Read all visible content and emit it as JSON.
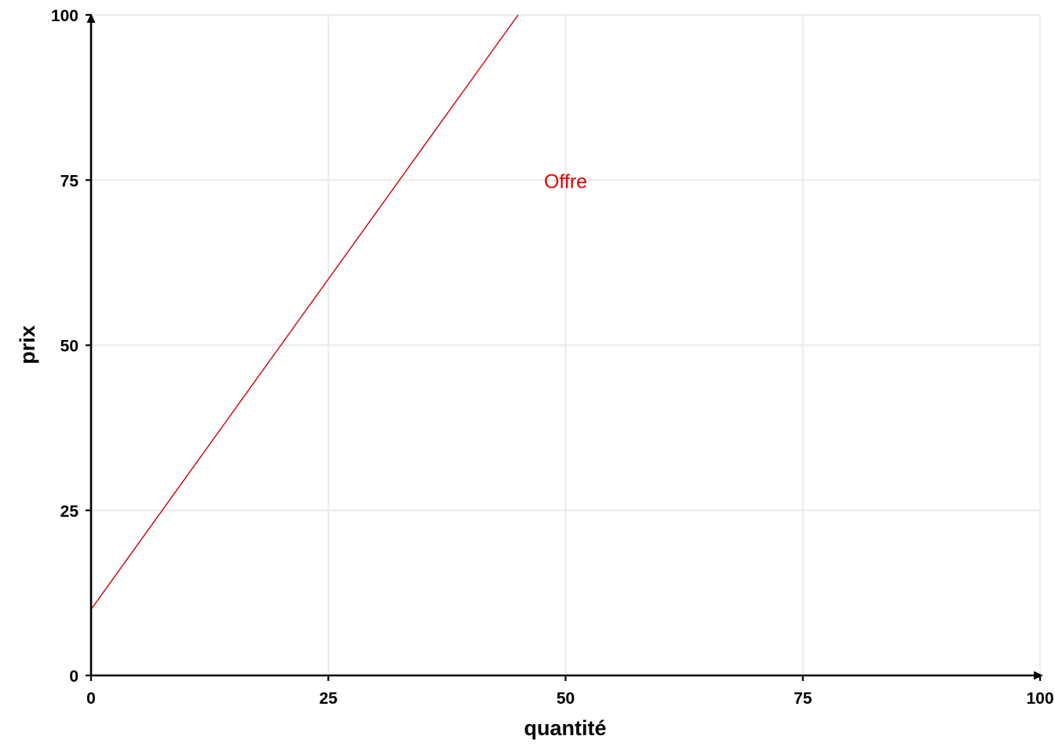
{
  "chart_data": {
    "type": "line",
    "title": "",
    "xlabel": "quantité",
    "ylabel": "prix",
    "xlim": [
      0,
      100
    ],
    "ylim": [
      0,
      100
    ],
    "x_ticks": [
      0,
      25,
      50,
      75,
      100
    ],
    "y_ticks": [
      0,
      25,
      50,
      75,
      100
    ],
    "x_tick_labels": [
      "0",
      "25",
      "50",
      "75",
      "100"
    ],
    "y_tick_labels": [
      "0",
      "25",
      "50",
      "75",
      "100"
    ],
    "grid": true,
    "legend": "none",
    "series": [
      {
        "color": "#cc0000",
        "x": [
          0,
          5,
          10,
          15,
          20,
          25,
          30,
          35,
          40,
          45
        ],
        "y": [
          10,
          20,
          30,
          40,
          50,
          60,
          70,
          80,
          90,
          100
        ]
      }
    ],
    "annotations": [
      {
        "text": "Offre",
        "x": 50,
        "y": 75,
        "color": "#e00000"
      }
    ]
  }
}
